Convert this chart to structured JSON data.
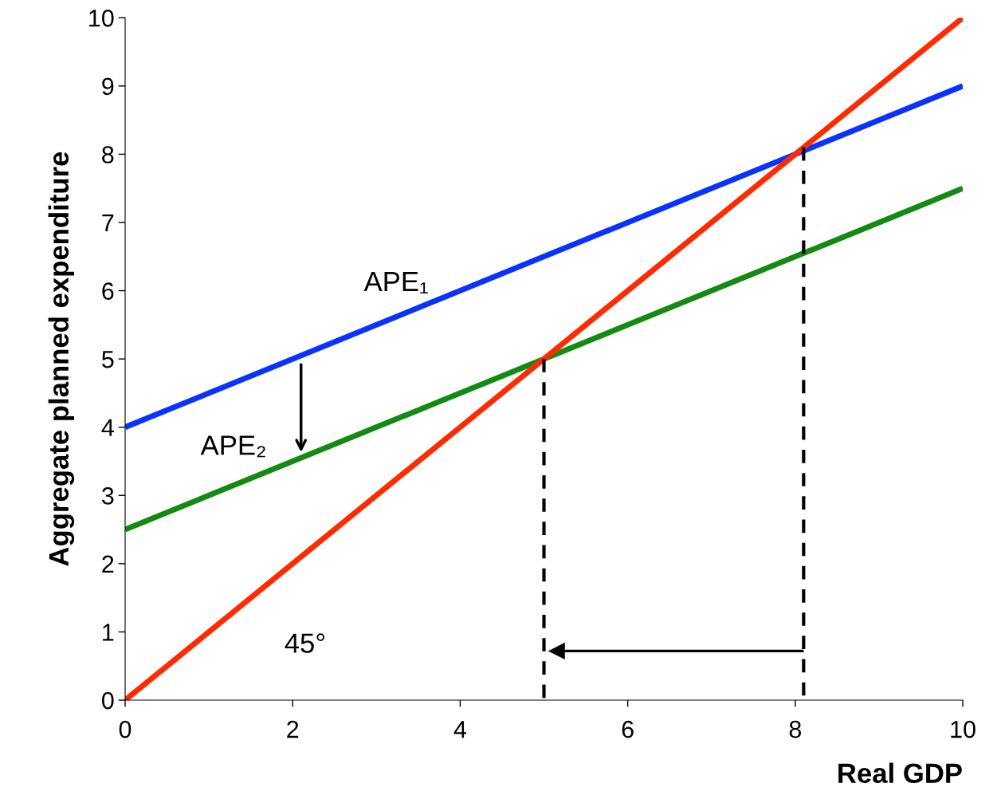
{
  "chart_data": {
    "type": "line",
    "xlabel": "Real GDP",
    "ylabel": "Aggregate planned expenditure",
    "xlim": [
      0,
      10
    ],
    "ylim": [
      0,
      10
    ],
    "xticks": [
      0,
      2,
      4,
      6,
      8,
      10
    ],
    "yticks": [
      0,
      1,
      2,
      3,
      4,
      5,
      6,
      7,
      8,
      9,
      10
    ],
    "grid": false,
    "marker": "none",
    "series": [
      {
        "color": "#0a32ff",
        "x": [
          0,
          10
        ],
        "values": [
          4,
          9
        ],
        "line_style": "solid"
      },
      {
        "color": "#138a13",
        "x": [
          0,
          10
        ],
        "values": [
          2.5,
          7.5
        ],
        "line_style": "solid"
      },
      {
        "color": "#ff2a00",
        "x": [
          0,
          10
        ],
        "values": [
          0,
          10
        ],
        "line_style": "solid"
      },
      {
        "color": "#000000",
        "x": [
          5,
          5
        ],
        "values": [
          5,
          0
        ],
        "line_style": "dashed"
      },
      {
        "color": "#000000",
        "x": [
          8.1,
          8.1
        ],
        "values": [
          8.1,
          0
        ],
        "line_style": "dashed"
      }
    ],
    "annotations": [
      "APE₁",
      "APE₂",
      "45°"
    ]
  }
}
